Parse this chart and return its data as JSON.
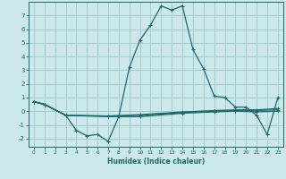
{
  "xlabel": "Humidex (Indice chaleur)",
  "xlim": [
    -0.5,
    23.5
  ],
  "ylim": [
    -2.6,
    8.0
  ],
  "yticks": [
    -2,
    -1,
    0,
    1,
    2,
    3,
    4,
    5,
    6,
    7
  ],
  "xticks": [
    0,
    1,
    2,
    3,
    4,
    5,
    6,
    7,
    8,
    9,
    10,
    11,
    12,
    13,
    14,
    15,
    16,
    17,
    18,
    19,
    20,
    21,
    22,
    23
  ],
  "bg_color": "#cce8ea",
  "grid_color": "#a0cdd0",
  "line_color": "#1a6b6b",
  "spine_color": "#1a6b6b",
  "main_line": [
    [
      0,
      0.7
    ],
    [
      1,
      0.5
    ],
    [
      3,
      -0.3
    ],
    [
      4,
      -1.4
    ],
    [
      5,
      -1.8
    ],
    [
      6,
      -1.7
    ],
    [
      7,
      -2.2
    ],
    [
      8,
      -0.4
    ],
    [
      9,
      3.2
    ],
    [
      10,
      5.2
    ],
    [
      11,
      6.3
    ],
    [
      12,
      7.7
    ],
    [
      13,
      7.4
    ],
    [
      14,
      7.7
    ],
    [
      15,
      4.5
    ],
    [
      16,
      3.1
    ],
    [
      17,
      1.1
    ],
    [
      18,
      1.0
    ],
    [
      19,
      0.3
    ],
    [
      20,
      0.3
    ],
    [
      21,
      -0.3
    ],
    [
      22,
      -1.7
    ],
    [
      23,
      1.0
    ]
  ],
  "flat_lines": [
    [
      [
        0,
        0.7
      ],
      [
        1,
        0.5
      ],
      [
        3,
        -0.3
      ],
      [
        7,
        -0.35
      ],
      [
        10,
        -0.25
      ],
      [
        14,
        -0.05
      ],
      [
        17,
        0.05
      ],
      [
        19,
        0.1
      ],
      [
        21,
        0.1
      ],
      [
        23,
        0.2
      ]
    ],
    [
      [
        0,
        0.7
      ],
      [
        1,
        0.5
      ],
      [
        3,
        -0.3
      ],
      [
        7,
        -0.35
      ],
      [
        10,
        -0.3
      ],
      [
        14,
        -0.1
      ],
      [
        17,
        0.0
      ],
      [
        19,
        0.05
      ],
      [
        21,
        0.05
      ],
      [
        23,
        0.1
      ]
    ],
    [
      [
        0,
        0.7
      ],
      [
        1,
        0.5
      ],
      [
        3,
        -0.3
      ],
      [
        7,
        -0.4
      ],
      [
        10,
        -0.4
      ],
      [
        14,
        -0.15
      ],
      [
        17,
        -0.05
      ],
      [
        19,
        -0.0
      ],
      [
        21,
        -0.05
      ],
      [
        23,
        0.0
      ]
    ]
  ]
}
